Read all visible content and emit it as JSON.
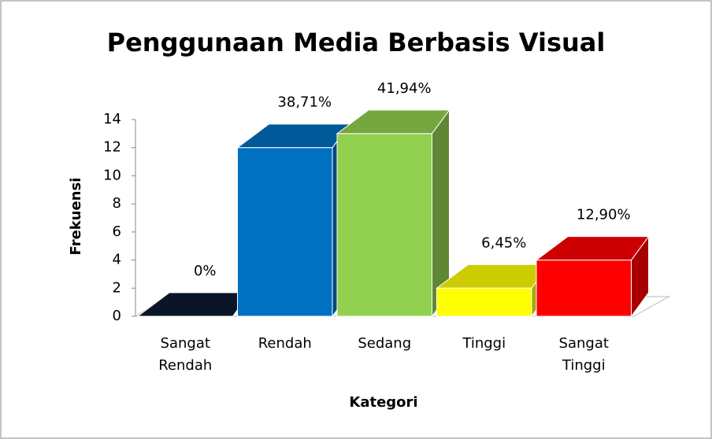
{
  "chart_data": {
    "type": "bar3d",
    "title": "Penggunaan Media Berbasis Visual",
    "x_label": "Kategori",
    "y_label": "Frekuensi",
    "categories": [
      "Sangat Rendah",
      "Rendah",
      "Sedang",
      "Tinggi",
      "Sangat Tinggi"
    ],
    "values": [
      0,
      12,
      13,
      2,
      4
    ],
    "annotations": [
      "0%",
      "38,71%",
      "41,94%",
      "6,45%",
      "12,90%"
    ],
    "colors": [
      "#0d1a33",
      "#0070c0",
      "#92d050",
      "#ffff00",
      "#ff0000"
    ],
    "ylim": [
      0,
      14
    ],
    "yticks": [
      0,
      2,
      4,
      6,
      8,
      10,
      12,
      14
    ]
  }
}
